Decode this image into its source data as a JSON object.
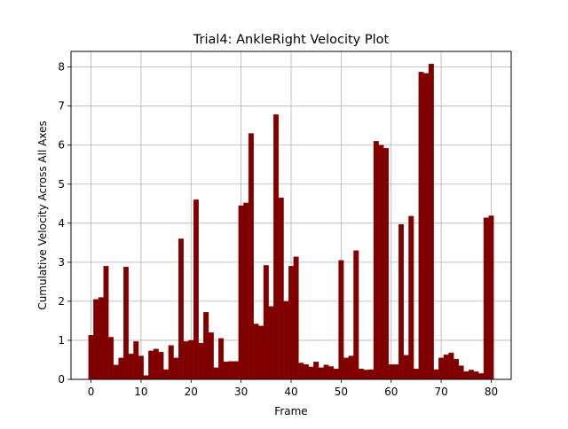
{
  "chart_data": {
    "type": "bar",
    "title": "Trial4: AnkleRight Velocity Plot",
    "xlabel": "Frame",
    "ylabel": "Cumulative Velocity Across All Axes",
    "xlim": [
      -4,
      84
    ],
    "ylim": [
      0,
      8.4
    ],
    "xticks": [
      0,
      10,
      20,
      30,
      40,
      50,
      60,
      70,
      80
    ],
    "yticks": [
      0,
      1,
      2,
      3,
      4,
      5,
      6,
      7,
      8
    ],
    "grid": true,
    "bar_color": "#800000",
    "x": [
      0,
      1,
      2,
      3,
      4,
      5,
      6,
      7,
      8,
      9,
      10,
      11,
      12,
      13,
      14,
      15,
      16,
      17,
      18,
      19,
      20,
      21,
      22,
      23,
      24,
      25,
      26,
      27,
      28,
      29,
      30,
      31,
      32,
      33,
      34,
      35,
      36,
      37,
      38,
      39,
      40,
      41,
      42,
      43,
      44,
      45,
      46,
      47,
      48,
      49,
      50,
      51,
      52,
      53,
      54,
      55,
      56,
      57,
      58,
      59,
      60,
      61,
      62,
      63,
      64,
      65,
      66,
      67,
      68,
      69,
      70,
      71,
      72,
      73,
      74,
      75,
      76,
      77,
      78,
      79,
      80
    ],
    "values": [
      1.13,
      2.05,
      2.1,
      2.9,
      1.08,
      0.37,
      0.55,
      2.88,
      0.65,
      0.97,
      0.6,
      0.1,
      0.73,
      0.78,
      0.7,
      0.25,
      0.87,
      0.55,
      3.6,
      0.97,
      1.0,
      4.6,
      0.93,
      1.72,
      1.2,
      0.3,
      1.05,
      0.45,
      0.46,
      0.46,
      4.45,
      4.52,
      6.3,
      1.42,
      1.37,
      2.92,
      1.87,
      6.78,
      4.65,
      2.0,
      2.9,
      3.14,
      0.42,
      0.38,
      0.32,
      0.45,
      0.3,
      0.37,
      0.33,
      0.27,
      3.05,
      0.55,
      0.6,
      3.3,
      0.27,
      0.24,
      0.25,
      6.1,
      6.0,
      5.92,
      0.38,
      0.38,
      3.97,
      0.62,
      4.18,
      0.27,
      7.87,
      7.84,
      8.08,
      0.25,
      0.55,
      0.63,
      0.68,
      0.52,
      0.35,
      0.2,
      0.24,
      0.2,
      0.15,
      4.14,
      4.19
    ]
  }
}
